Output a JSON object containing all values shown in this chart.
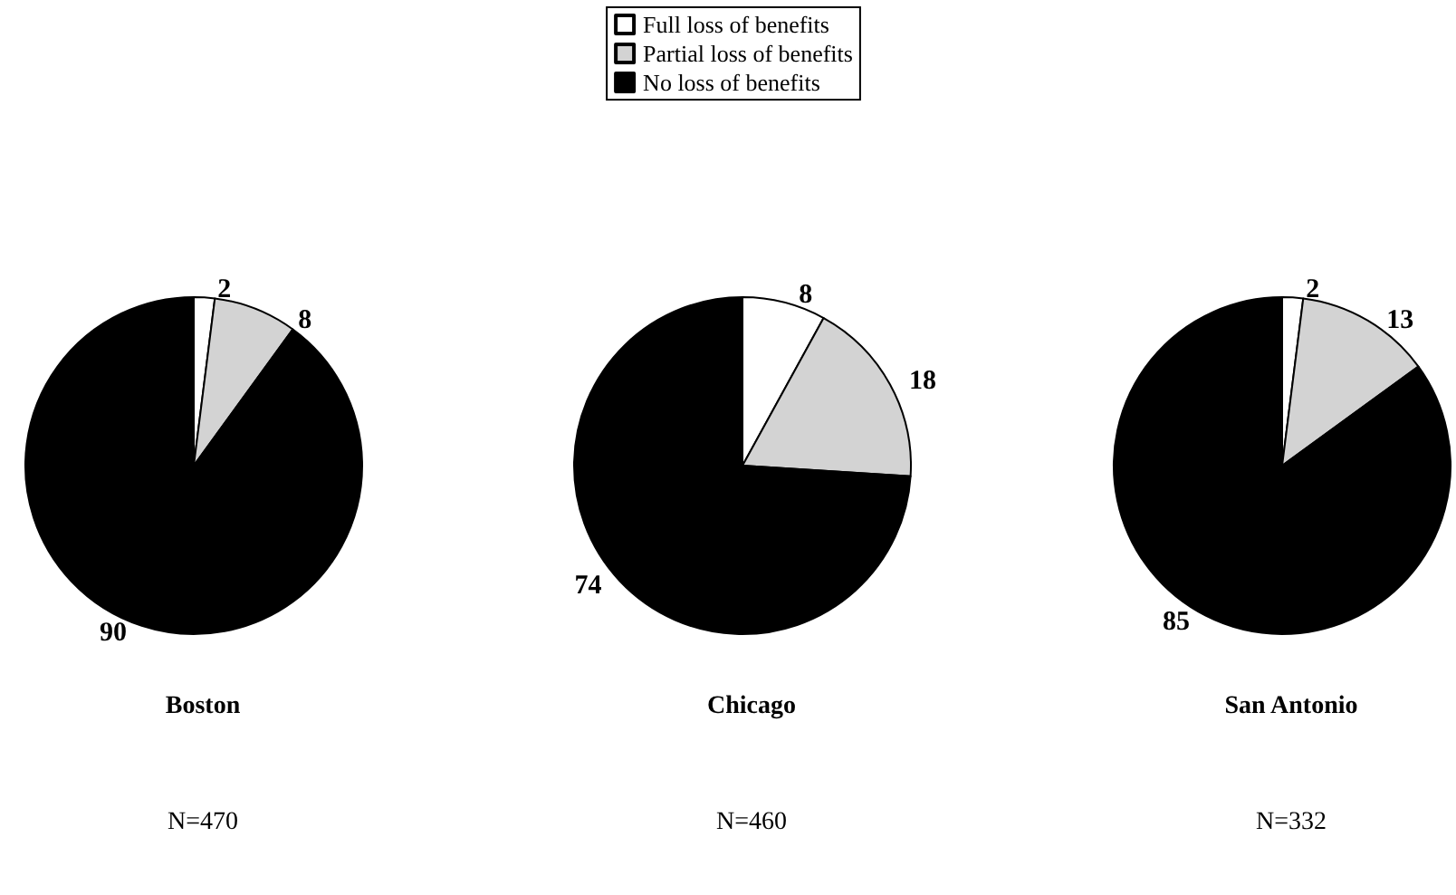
{
  "chart_data": [
    {
      "type": "pie",
      "title": "Boston",
      "annotations": [
        "N=470"
      ],
      "categories": [
        null,
        null,
        null
      ],
      "values": [
        2,
        8,
        90
      ],
      "colors": [
        "#ffffff",
        "#d3d3d3",
        "#000000"
      ],
      "data_labels": true
    },
    {
      "type": "pie",
      "title": "Chicago",
      "annotations": [
        "N=460"
      ],
      "categories": [
        "Full loss of benefits",
        "Partial loss of benefits",
        "No loss of benefits"
      ],
      "values": [
        8,
        18,
        74
      ],
      "colors": [
        "#ffffff",
        "#d3d3d3",
        "#000000"
      ],
      "data_labels": true,
      "legend": "top"
    },
    {
      "type": "pie",
      "title": "San Antonio",
      "annotations": [
        "N=332"
      ],
      "categories": [
        null,
        null,
        null
      ],
      "values": [
        2,
        13,
        85
      ],
      "colors": [
        "#ffffff",
        "#d3d3d3",
        "#000000"
      ],
      "data_labels": true
    }
  ]
}
